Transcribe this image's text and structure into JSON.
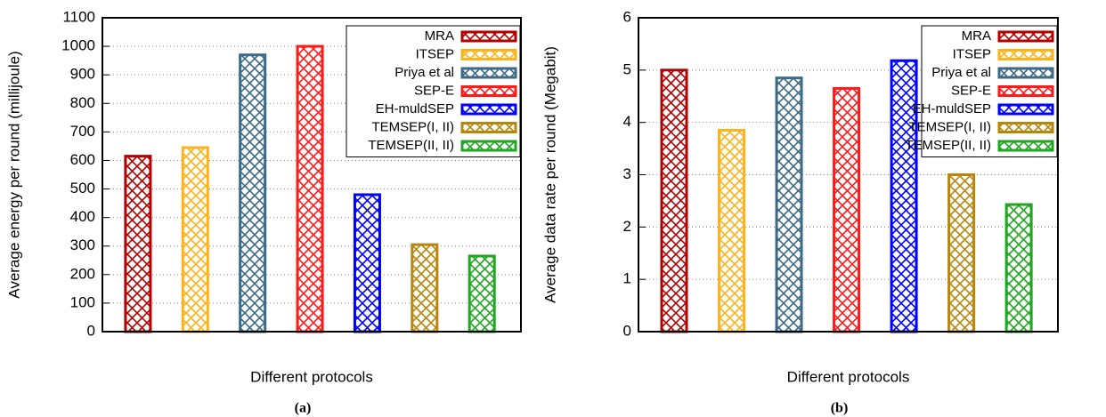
{
  "chart_data": [
    {
      "type": "bar",
      "ylabel": "Average energy per round (millijoule)",
      "xlabel": "Different protocols",
      "caption": "(a)",
      "ylim": [
        0,
        1100
      ],
      "yticks": [
        0,
        100,
        200,
        300,
        400,
        500,
        600,
        700,
        800,
        900,
        1000,
        1100
      ],
      "grid": true,
      "legend": "upper right",
      "series": [
        {
          "name": "MRA",
          "color": "#b30000",
          "values": [
            615
          ]
        },
        {
          "name": "ITSEP",
          "color": "#ffb31a",
          "values": [
            645
          ]
        },
        {
          "name": "Priya et al",
          "color": "#3d6a87",
          "values": [
            970
          ]
        },
        {
          "name": "SEP-E",
          "color": "#ff1a1a",
          "values": [
            1000
          ]
        },
        {
          "name": "EH-muldSEP",
          "color": "#0000ff",
          "values": [
            480
          ]
        },
        {
          "name": "TEMSEP(I, II)",
          "color": "#b8860b",
          "values": [
            305
          ]
        },
        {
          "name": "TEMSEP(II, II)",
          "color": "#1fa81f",
          "values": [
            265
          ]
        }
      ]
    },
    {
      "type": "bar",
      "ylabel": "Average data rate per round (Megabit)",
      "xlabel": "Different protocols",
      "caption": "(b)",
      "ylim": [
        0,
        6
      ],
      "yticks": [
        0,
        1,
        2,
        3,
        4,
        5,
        6
      ],
      "grid": true,
      "legend": "upper right",
      "series": [
        {
          "name": "MRA",
          "color": "#b30000",
          "values": [
            5.0
          ]
        },
        {
          "name": "ITSEP",
          "color": "#ffb31a",
          "values": [
            3.85
          ]
        },
        {
          "name": "Priya et al",
          "color": "#3d6a87",
          "values": [
            4.85
          ]
        },
        {
          "name": "SEP-E",
          "color": "#ff1a1a",
          "values": [
            4.65
          ]
        },
        {
          "name": "EH-muldSEP",
          "color": "#0000ff",
          "values": [
            5.18
          ]
        },
        {
          "name": "TEMSEP(I, II)",
          "color": "#b8860b",
          "values": [
            3.0
          ]
        },
        {
          "name": "TEMSEP(II, II)",
          "color": "#1fa81f",
          "values": [
            2.43
          ]
        }
      ]
    }
  ]
}
